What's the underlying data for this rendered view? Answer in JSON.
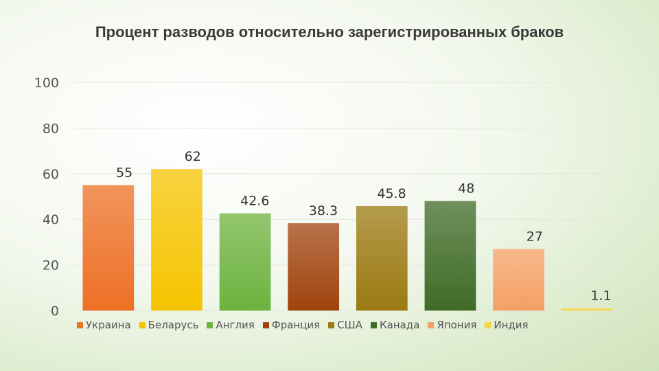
{
  "chart_data": {
    "type": "bar",
    "title": "Процент разводов относительно зарегистрированных браков",
    "categories": [
      "Украина",
      "Беларусь",
      "Англия",
      "Франция",
      "США",
      "Канада",
      "Япония",
      "Индия"
    ],
    "values": [
      55,
      62,
      42.6,
      38.3,
      45.8,
      48,
      27,
      1.1
    ],
    "value_labels": [
      "55",
      "62",
      "42.6",
      "38.3",
      "45.8",
      "48",
      "27",
      "1.1"
    ],
    "colors": [
      "#ee7026",
      "#f5c400",
      "#6db33f",
      "#a0430d",
      "#9b7a12",
      "#3f6b27",
      "#f4a064",
      "#f7d74a"
    ],
    "ylim": [
      0,
      100
    ],
    "yticks": [
      "0",
      "20",
      "40",
      "60",
      "80",
      "100"
    ],
    "xlabel": "",
    "ylabel": "",
    "grid": true,
    "legend_position": "bottom"
  }
}
